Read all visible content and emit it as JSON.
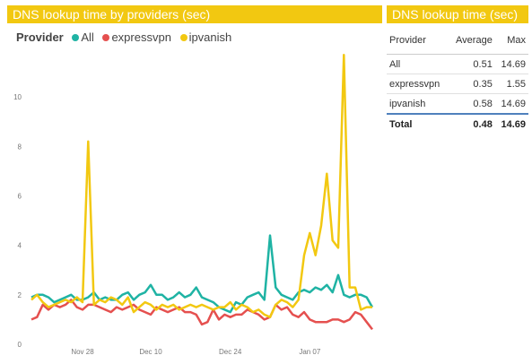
{
  "chart_panel": {
    "title": "DNS lookup time by providers (sec)"
  },
  "legend": {
    "title": "Provider",
    "items": [
      {
        "name": "All",
        "color": "#1fb3a4"
      },
      {
        "name": "expressvpn",
        "color": "#e5504f"
      },
      {
        "name": "ipvanish",
        "color": "#f2c811"
      }
    ]
  },
  "chart_data": {
    "type": "line",
    "title": "DNS lookup time by providers (sec)",
    "xlabel": "",
    "ylabel": "",
    "ylim": [
      0,
      12
    ],
    "yticks": [
      0,
      2,
      4,
      6,
      8,
      10
    ],
    "xticks": [
      {
        "label": "Nov 28",
        "day": 9
      },
      {
        "label": "Dec 10",
        "day": 21
      },
      {
        "label": "Dec 24",
        "day": 35
      },
      {
        "label": "Jan 07",
        "day": 49
      }
    ],
    "grid": false,
    "series": [
      {
        "name": "All",
        "color": "#1fb3a4",
        "values": [
          1.9,
          2.0,
          2.0,
          1.9,
          1.7,
          1.8,
          1.9,
          2.0,
          1.8,
          1.8,
          1.9,
          2.1,
          1.8,
          1.9,
          1.8,
          1.8,
          2.0,
          2.1,
          1.8,
          2.0,
          2.1,
          2.4,
          2.0,
          2.0,
          1.8,
          1.9,
          2.1,
          1.9,
          2.0,
          2.3,
          1.9,
          1.8,
          1.7,
          1.5,
          1.4,
          1.3,
          1.7,
          1.6,
          1.9,
          2.0,
          2.1,
          1.8,
          4.4,
          2.3,
          2.0,
          1.9,
          1.8,
          2.1,
          2.2,
          2.1,
          2.3,
          2.2,
          2.4,
          2.1,
          2.8,
          2.0,
          1.9,
          2.0,
          2.0,
          1.9,
          1.5
        ]
      },
      {
        "name": "expressvpn",
        "color": "#e5504f",
        "values": [
          1.0,
          1.1,
          1.6,
          1.4,
          1.6,
          1.5,
          1.6,
          1.8,
          1.5,
          1.4,
          1.6,
          1.6,
          1.5,
          1.4,
          1.3,
          1.5,
          1.4,
          1.5,
          1.6,
          1.4,
          1.3,
          1.2,
          1.5,
          1.4,
          1.3,
          1.4,
          1.5,
          1.3,
          1.3,
          1.2,
          0.8,
          0.9,
          1.4,
          1.0,
          1.2,
          1.1,
          1.2,
          1.2,
          1.4,
          1.3,
          1.2,
          1.0,
          1.1,
          1.6,
          1.4,
          1.5,
          1.2,
          1.1,
          1.3,
          1.0,
          0.9,
          0.9,
          0.9,
          1.0,
          1.0,
          0.9,
          1.0,
          1.3,
          1.2,
          0.9,
          0.6
        ]
      },
      {
        "name": "ipvanish",
        "color": "#f2c811",
        "values": [
          1.8,
          2.0,
          1.7,
          1.5,
          1.6,
          1.7,
          1.8,
          1.7,
          1.9,
          1.7,
          8.2,
          1.6,
          1.8,
          1.7,
          1.9,
          1.8,
          1.6,
          1.9,
          1.3,
          1.5,
          1.7,
          1.6,
          1.4,
          1.6,
          1.5,
          1.6,
          1.4,
          1.5,
          1.6,
          1.5,
          1.6,
          1.5,
          1.4,
          1.5,
          1.5,
          1.7,
          1.4,
          1.6,
          1.5,
          1.3,
          1.4,
          1.2,
          1.1,
          1.6,
          1.8,
          1.7,
          1.5,
          1.8,
          3.6,
          4.5,
          3.6,
          4.8,
          6.9,
          4.2,
          3.9,
          11.7,
          2.3,
          2.3,
          1.4,
          1.5,
          1.5
        ]
      }
    ]
  },
  "table_panel": {
    "title": "DNS lookup time (sec)",
    "headers": {
      "provider": "Provider",
      "average": "Average",
      "max": "Max"
    },
    "rows": [
      {
        "provider": "All",
        "average": "0.51",
        "max": "14.69"
      },
      {
        "provider": "expressvpn",
        "average": "0.35",
        "max": "1.55"
      },
      {
        "provider": "ipvanish",
        "average": "0.58",
        "max": "14.69"
      }
    ],
    "total": {
      "provider": "Total",
      "average": "0.48",
      "max": "14.69"
    }
  }
}
